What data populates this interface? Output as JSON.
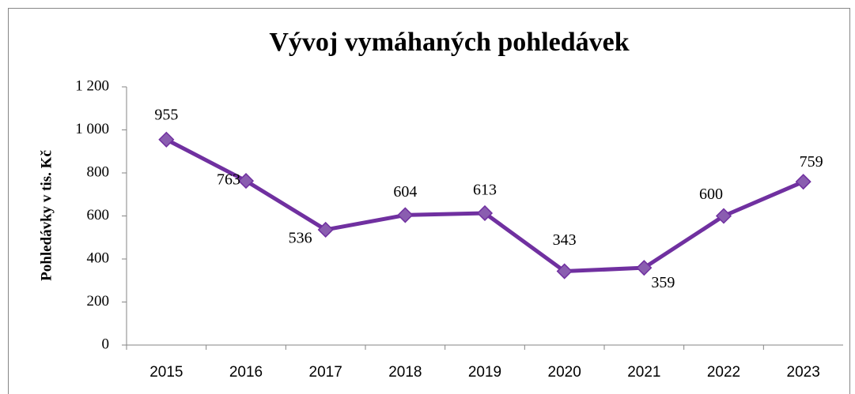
{
  "chart_data": {
    "type": "line",
    "title": "Vývoj vymáhaných pohledávek",
    "y_label": "Pohledávky v tis. Kč",
    "categories": [
      "2015",
      "2016",
      "2017",
      "2018",
      "2019",
      "2020",
      "2021",
      "2022",
      "2023"
    ],
    "series": [
      {
        "name": "Pohledávky",
        "color": "#7030a0",
        "marker_color": "#8a5db0",
        "values": [
          955,
          763,
          536,
          604,
          613,
          343,
          359,
          600,
          759
        ]
      }
    ],
    "ylim": [
      0,
      1200
    ],
    "yticks": [
      0,
      200,
      400,
      600,
      800,
      {
        "value": 1000,
        "label": "1 000"
      },
      {
        "value": 1200,
        "label": "1 200"
      }
    ],
    "grid": false
  }
}
